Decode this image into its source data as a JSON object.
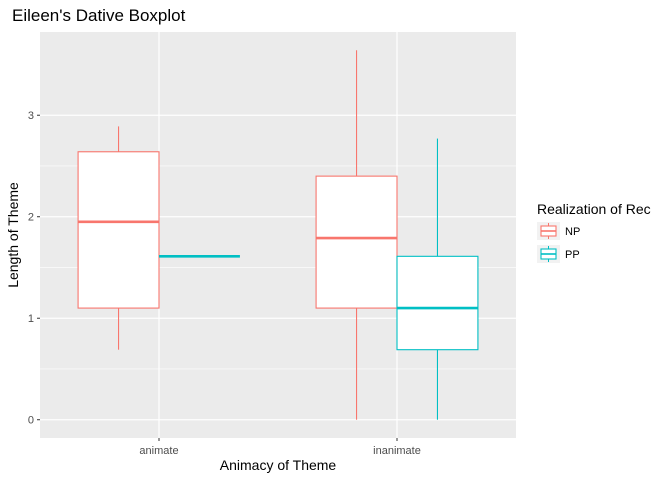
{
  "chart_data": {
    "type": "boxplot",
    "title": "Eileen's Dative Boxplot",
    "xlabel": "Animacy of Theme",
    "ylabel": "Length of Theme",
    "categories": [
      "animate",
      "inanimate"
    ],
    "yticks": [
      0,
      1,
      2,
      3
    ],
    "ylim": [
      -0.18,
      3.82
    ],
    "grid": true,
    "legend": {
      "title": "Realization of Rec",
      "position": "right",
      "entries": [
        "NP",
        "PP"
      ]
    },
    "series": [
      {
        "name": "NP",
        "color": "#F8766D",
        "boxes": [
          {
            "category": "animate",
            "min": 0.69,
            "q1": 1.1,
            "median": 1.95,
            "q3": 2.64,
            "max": 2.89
          },
          {
            "category": "inanimate",
            "min": 0.0,
            "q1": 1.1,
            "median": 1.79,
            "q3": 2.4,
            "max": 3.64
          }
        ]
      },
      {
        "name": "PP",
        "color": "#00BFC4",
        "boxes": [
          {
            "category": "animate",
            "min": 1.61,
            "q1": 1.61,
            "median": 1.61,
            "q3": 1.61,
            "max": 1.61
          },
          {
            "category": "inanimate",
            "min": 0.0,
            "q1": 0.69,
            "median": 1.1,
            "q3": 1.61,
            "max": 2.77
          }
        ]
      }
    ]
  }
}
